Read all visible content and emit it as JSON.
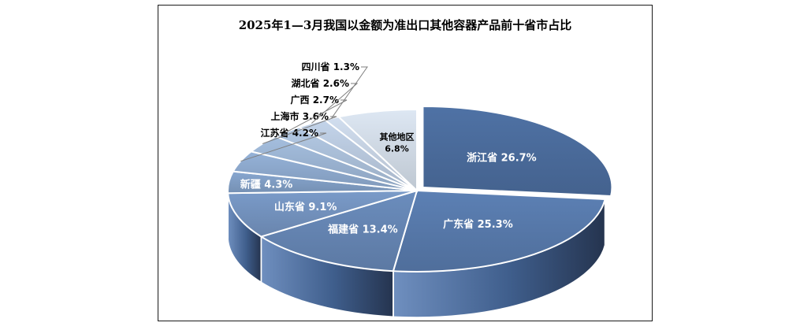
{
  "chart_data": {
    "type": "pie",
    "title": "2025年1—3月我国以金额为准出口其他容器产品前十省市占比",
    "unit": "%",
    "slices": [
      {
        "label": "浙江省",
        "value": 26.7,
        "color": "#4f72a5"
      },
      {
        "label": "广东省",
        "value": 25.3,
        "color": "#5c80b4"
      },
      {
        "label": "福建省",
        "value": 13.4,
        "color": "#6b8dbd"
      },
      {
        "label": "山东省",
        "value": 9.1,
        "color": "#7a9bc9"
      },
      {
        "label": "新疆",
        "value": 4.3,
        "color": "#88a7d0"
      },
      {
        "label": "江苏省",
        "value": 4.2,
        "color": "#95b2d8"
      },
      {
        "label": "上海市",
        "value": 3.6,
        "color": "#a4bede"
      },
      {
        "label": "广西",
        "value": 2.7,
        "color": "#b3c9e4"
      },
      {
        "label": "湖北省",
        "value": 2.6,
        "color": "#c3d4ea"
      },
      {
        "label": "四川省",
        "value": 1.3,
        "color": "#d1deef"
      },
      {
        "label": "其他地区",
        "value": 6.8,
        "color": "#dde7f3"
      }
    ],
    "legend": "none",
    "data_labels": "inside-and-leader-lines"
  }
}
